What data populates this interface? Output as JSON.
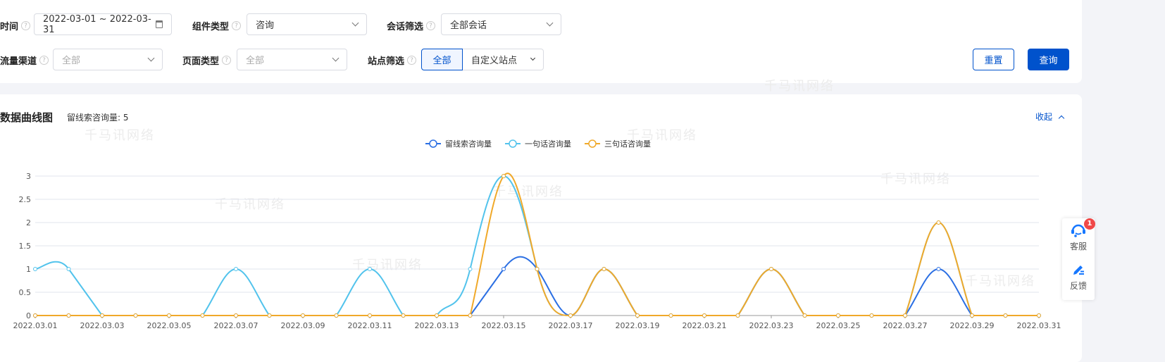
{
  "filters": {
    "time": {
      "label": "时间",
      "value": "2022-03-01 ~ 2022-03-31"
    },
    "component_type": {
      "label": "组件类型",
      "value": "咨询"
    },
    "session_filter": {
      "label": "会话筛选",
      "value": "全部会话"
    },
    "traffic_channel": {
      "label": "流量渠道",
      "placeholder": "全部"
    },
    "page_type": {
      "label": "页面类型",
      "placeholder": "全部"
    },
    "site_filter": {
      "label": "站点筛选",
      "options": [
        "全部",
        "自定义站点"
      ],
      "selected": "全部"
    },
    "reset_label": "重置",
    "query_label": "查询"
  },
  "chart_section": {
    "title": "数据曲线图",
    "summary": "留线索咨询量: 5",
    "collapse_label": "收起"
  },
  "watermark": "千马讯网络",
  "side_widget": {
    "service_label": "客服",
    "service_badge": "1",
    "feedback_label": "反馈"
  },
  "colors": {
    "primary": "#0052cc",
    "series": [
      "#2b6fe3",
      "#52c3ec",
      "#f0a92a"
    ]
  },
  "chart_data": {
    "type": "line",
    "smooth": true,
    "x": [
      "2022.03.01",
      "2022.03.02",
      "2022.03.03",
      "2022.03.04",
      "2022.03.05",
      "2022.03.06",
      "2022.03.07",
      "2022.03.08",
      "2022.03.09",
      "2022.03.10",
      "2022.03.11",
      "2022.03.12",
      "2022.03.13",
      "2022.03.14",
      "2022.03.15",
      "2022.03.16",
      "2022.03.17",
      "2022.03.18",
      "2022.03.19",
      "2022.03.20",
      "2022.03.21",
      "2022.03.22",
      "2022.03.23",
      "2022.03.24",
      "2022.03.25",
      "2022.03.26",
      "2022.03.27",
      "2022.03.28",
      "2022.03.29",
      "2022.03.30",
      "2022.03.31"
    ],
    "x_tick_labels": [
      "2022.03.01",
      "2022.03.03",
      "2022.03.05",
      "2022.03.07",
      "2022.03.09",
      "2022.03.11",
      "2022.03.13",
      "2022.03.15",
      "2022.03.17",
      "2022.03.19",
      "2022.03.21",
      "2022.03.23",
      "2022.03.25",
      "2022.03.27",
      "2022.03.29",
      "2022.03.31"
    ],
    "y_ticks": [
      "0",
      "0.5",
      "1",
      "1.5",
      "2",
      "2.5",
      "3"
    ],
    "ylim": [
      0,
      3
    ],
    "grid": true,
    "legend_position": "top-center",
    "series": [
      {
        "name": "留线索咨询量",
        "values": [
          0,
          0,
          0,
          0,
          0,
          0,
          0,
          0,
          0,
          0,
          0,
          0,
          0,
          0,
          1,
          1,
          0,
          1,
          0,
          0,
          0,
          0,
          1,
          0,
          0,
          0,
          0,
          1,
          0,
          0,
          0
        ]
      },
      {
        "name": "一句话咨询量",
        "values": [
          1,
          1,
          0,
          0,
          0,
          0,
          1,
          0,
          0,
          0,
          1,
          0,
          0,
          1,
          3,
          1,
          0,
          1,
          0,
          0,
          0,
          0,
          1,
          0,
          0,
          0,
          0,
          2,
          0,
          0,
          0
        ]
      },
      {
        "name": "三句话咨询量",
        "values": [
          0,
          0,
          0,
          0,
          0,
          0,
          0,
          0,
          0,
          0,
          0,
          0,
          0,
          0,
          3,
          1,
          0,
          1,
          0,
          0,
          0,
          0,
          1,
          0,
          0,
          0,
          0,
          2,
          0,
          0,
          0
        ]
      }
    ]
  }
}
